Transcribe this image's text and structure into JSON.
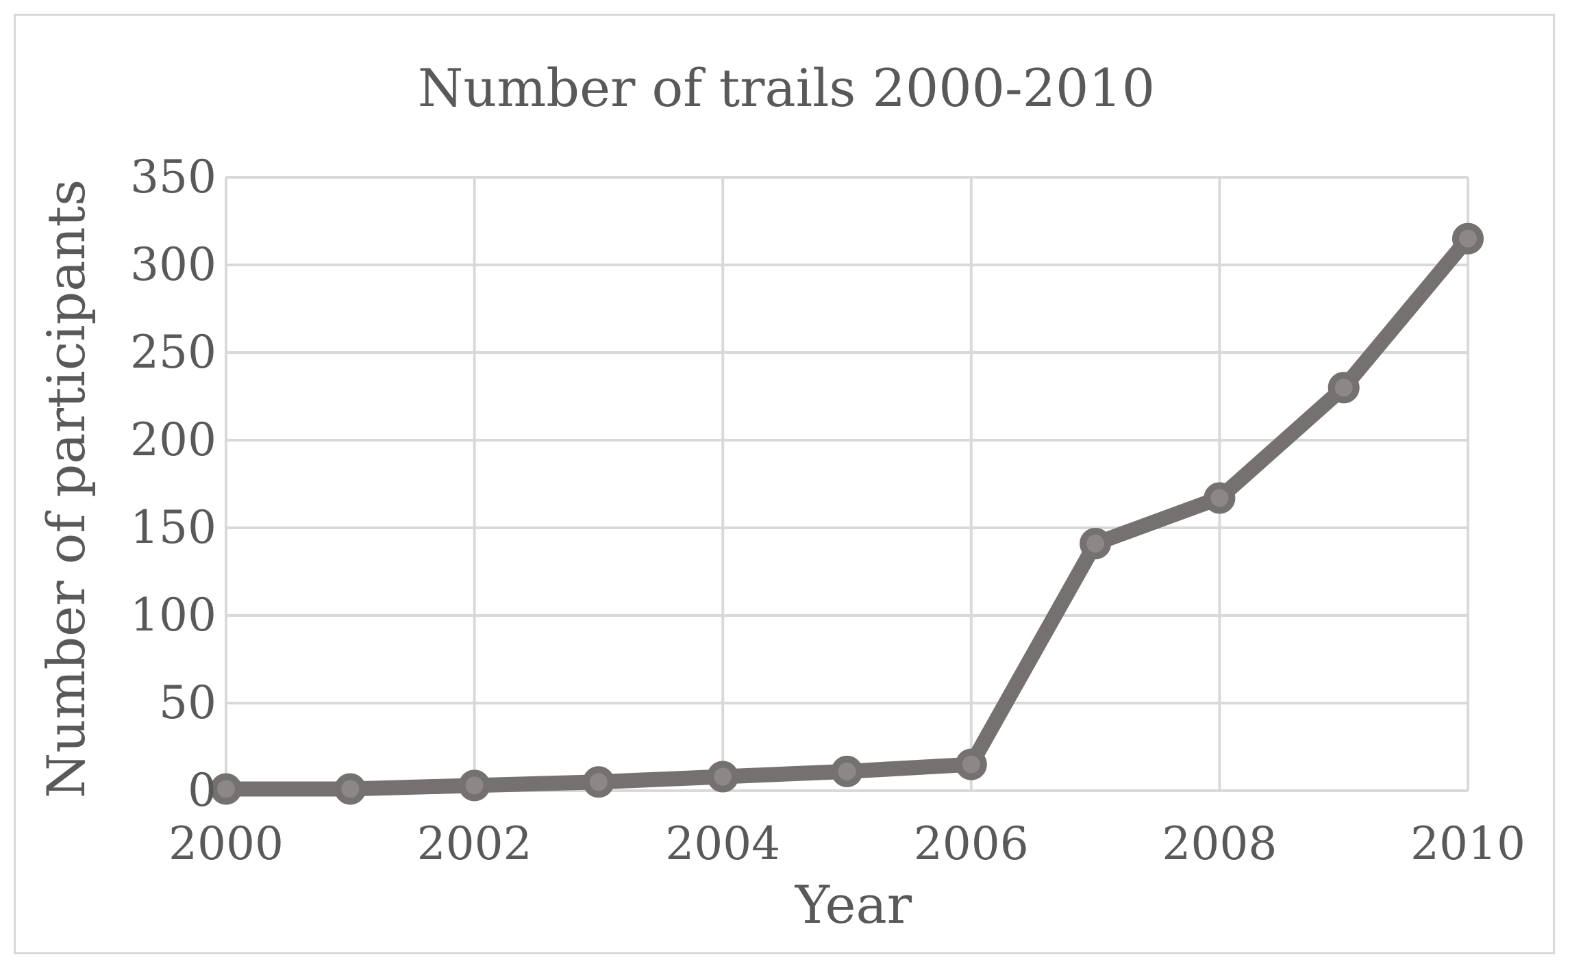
{
  "chart_data": {
    "type": "line",
    "title": "Number of trails 2000-2010",
    "xlabel": "Year",
    "ylabel": "Number of participants",
    "x": [
      2000,
      2001,
      2002,
      2003,
      2004,
      2005,
      2006,
      2007,
      2008,
      2009,
      2010
    ],
    "xlim": [
      2000,
      2010
    ],
    "x_tick_labels": [
      "2000",
      "2002",
      "2004",
      "2006",
      "2008",
      "2010"
    ],
    "ylim": [
      0,
      350
    ],
    "y_tick_labels": [
      "0",
      "50",
      "100",
      "150",
      "200",
      "250",
      "300",
      "350"
    ],
    "grid": true,
    "legend": "none",
    "series": [
      {
        "values": [
          1,
          1,
          3,
          5,
          8,
          11,
          15,
          141,
          167,
          230,
          315
        ],
        "color": "#757171"
      }
    ],
    "colors": {
      "line": "#757171",
      "marker_fill": "#8c8888",
      "grid": "#d9d9d9",
      "text": "#595959",
      "border": "#d9d9d9"
    }
  }
}
